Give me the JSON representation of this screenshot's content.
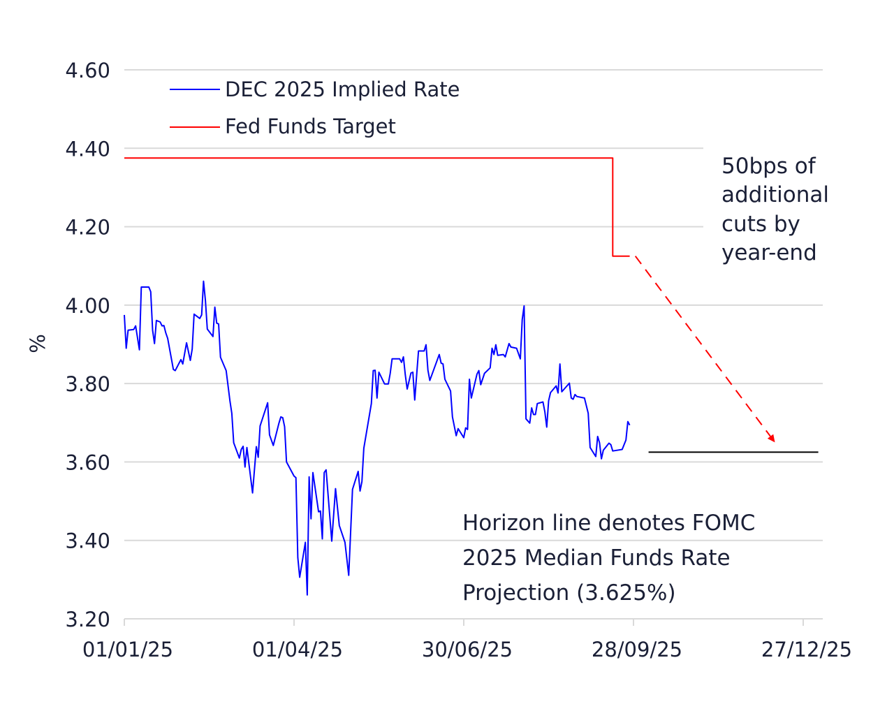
{
  "chart_data": {
    "type": "line",
    "title": "",
    "xlabel": "",
    "ylabel": "%",
    "ylim": [
      3.2,
      4.6
    ],
    "xlim": [
      "2025-01-01",
      "2026-01-06"
    ],
    "grid": true,
    "legend_position": "top-left",
    "y_ticks": [
      "4.60",
      "4.40",
      "4.20",
      "4.00",
      "3.80",
      "3.60",
      "3.40",
      "3.20"
    ],
    "x_ticks": [
      {
        "date": "2025-01-01",
        "label": "01/01/25"
      },
      {
        "date": "2025-04-01",
        "label": "01/04/25"
      },
      {
        "date": "2025-06-30",
        "label": "30/06/25"
      },
      {
        "date": "2025-09-28",
        "label": "28/09/25"
      },
      {
        "date": "2025-12-27",
        "label": "27/12/25"
      }
    ],
    "series": [
      {
        "name": "DEC 2025 Implied Rate",
        "color": "#0000ff",
        "points": [
          [
            "2025-01-01",
            3.975
          ],
          [
            "2025-01-02",
            3.89
          ],
          [
            "2025-01-03",
            3.936
          ],
          [
            "2025-01-06",
            3.938
          ],
          [
            "2025-01-07",
            3.947
          ],
          [
            "2025-01-09",
            3.886
          ],
          [
            "2025-01-10",
            4.046
          ],
          [
            "2025-01-14",
            4.046
          ],
          [
            "2025-01-15",
            4.034
          ],
          [
            "2025-01-16",
            3.936
          ],
          [
            "2025-01-17",
            3.902
          ],
          [
            "2025-01-18",
            3.961
          ],
          [
            "2025-01-20",
            3.957
          ],
          [
            "2025-01-21",
            3.947
          ],
          [
            "2025-01-22",
            3.948
          ],
          [
            "2025-01-23",
            3.929
          ],
          [
            "2025-01-24",
            3.915
          ],
          [
            "2025-01-27",
            3.836
          ],
          [
            "2025-01-28",
            3.833
          ],
          [
            "2025-01-31",
            3.861
          ],
          [
            "2025-02-01",
            3.85
          ],
          [
            "2025-02-03",
            3.904
          ],
          [
            "2025-02-05",
            3.859
          ],
          [
            "2025-02-06",
            3.888
          ],
          [
            "2025-02-07",
            3.977
          ],
          [
            "2025-02-10",
            3.966
          ],
          [
            "2025-02-11",
            3.975
          ],
          [
            "2025-02-12",
            4.061
          ],
          [
            "2025-02-13",
            4.012
          ],
          [
            "2025-02-14",
            3.939
          ],
          [
            "2025-02-17",
            3.92
          ],
          [
            "2025-02-18",
            3.995
          ],
          [
            "2025-02-19",
            3.954
          ],
          [
            "2025-02-20",
            3.952
          ],
          [
            "2025-02-21",
            3.867
          ],
          [
            "2025-02-24",
            3.833
          ],
          [
            "2025-02-26",
            3.756
          ],
          [
            "2025-02-27",
            3.724
          ],
          [
            "2025-02-28",
            3.649
          ],
          [
            "2025-03-03",
            3.61
          ],
          [
            "2025-03-04",
            3.632
          ],
          [
            "2025-03-05",
            3.64
          ],
          [
            "2025-03-06",
            3.587
          ],
          [
            "2025-03-07",
            3.637
          ],
          [
            "2025-03-10",
            3.521
          ],
          [
            "2025-03-12",
            3.639
          ],
          [
            "2025-03-13",
            3.612
          ],
          [
            "2025-03-14",
            3.692
          ],
          [
            "2025-03-18",
            3.751
          ],
          [
            "2025-03-19",
            3.669
          ],
          [
            "2025-03-21",
            3.642
          ],
          [
            "2025-03-24",
            3.699
          ],
          [
            "2025-03-25",
            3.715
          ],
          [
            "2025-03-26",
            3.713
          ],
          [
            "2025-03-27",
            3.69
          ],
          [
            "2025-03-28",
            3.6
          ],
          [
            "2025-04-01",
            3.564
          ],
          [
            "2025-04-02",
            3.56
          ],
          [
            "2025-04-03",
            3.356
          ],
          [
            "2025-04-04",
            3.306
          ],
          [
            "2025-04-07",
            3.395
          ],
          [
            "2025-04-08",
            3.261
          ],
          [
            "2025-04-09",
            3.562
          ],
          [
            "2025-04-10",
            3.455
          ],
          [
            "2025-04-11",
            3.573
          ],
          [
            "2025-04-14",
            3.473
          ],
          [
            "2025-04-15",
            3.475
          ],
          [
            "2025-04-16",
            3.404
          ],
          [
            "2025-04-17",
            3.573
          ],
          [
            "2025-04-18",
            3.58
          ],
          [
            "2025-04-21",
            3.398
          ],
          [
            "2025-04-23",
            3.532
          ],
          [
            "2025-04-25",
            3.438
          ],
          [
            "2025-04-28",
            3.395
          ],
          [
            "2025-04-30",
            3.311
          ],
          [
            "2025-05-02",
            3.53
          ],
          [
            "2025-05-05",
            3.576
          ],
          [
            "2025-05-06",
            3.526
          ],
          [
            "2025-05-07",
            3.55
          ],
          [
            "2025-05-08",
            3.635
          ],
          [
            "2025-05-12",
            3.749
          ],
          [
            "2025-05-13",
            3.833
          ],
          [
            "2025-05-14",
            3.834
          ],
          [
            "2025-05-15",
            3.763
          ],
          [
            "2025-05-16",
            3.829
          ],
          [
            "2025-05-19",
            3.799
          ],
          [
            "2025-05-21",
            3.799
          ],
          [
            "2025-05-22",
            3.826
          ],
          [
            "2025-05-23",
            3.863
          ],
          [
            "2025-05-27",
            3.863
          ],
          [
            "2025-05-28",
            3.854
          ],
          [
            "2025-05-29",
            3.868
          ],
          [
            "2025-05-30",
            3.822
          ],
          [
            "2025-05-31",
            3.786
          ],
          [
            "2025-06-02",
            3.827
          ],
          [
            "2025-06-03",
            3.829
          ],
          [
            "2025-06-04",
            3.758
          ],
          [
            "2025-06-06",
            3.883
          ],
          [
            "2025-06-09",
            3.883
          ],
          [
            "2025-06-10",
            3.899
          ],
          [
            "2025-06-11",
            3.834
          ],
          [
            "2025-06-12",
            3.808
          ],
          [
            "2025-06-17",
            3.874
          ],
          [
            "2025-06-18",
            3.852
          ],
          [
            "2025-06-19",
            3.85
          ],
          [
            "2025-06-20",
            3.811
          ],
          [
            "2025-06-23",
            3.781
          ],
          [
            "2025-06-24",
            3.715
          ],
          [
            "2025-06-26",
            3.667
          ],
          [
            "2025-06-27",
            3.685
          ],
          [
            "2025-06-30",
            3.662
          ],
          [
            "2025-07-01",
            3.687
          ],
          [
            "2025-07-02",
            3.683
          ],
          [
            "2025-07-03",
            3.811
          ],
          [
            "2025-07-04",
            3.763
          ],
          [
            "2025-07-07",
            3.824
          ],
          [
            "2025-07-08",
            3.833
          ],
          [
            "2025-07-09",
            3.797
          ],
          [
            "2025-07-11",
            3.826
          ],
          [
            "2025-07-14",
            3.84
          ],
          [
            "2025-07-15",
            3.89
          ],
          [
            "2025-07-16",
            3.874
          ],
          [
            "2025-07-17",
            3.899
          ],
          [
            "2025-07-18",
            3.872
          ],
          [
            "2025-07-21",
            3.874
          ],
          [
            "2025-07-22",
            3.868
          ],
          [
            "2025-07-24",
            3.902
          ],
          [
            "2025-07-25",
            3.893
          ],
          [
            "2025-07-28",
            3.89
          ],
          [
            "2025-07-30",
            3.863
          ],
          [
            "2025-07-31",
            3.963
          ],
          [
            "2025-08-01",
            3.998
          ],
          [
            "2025-08-02",
            3.71
          ],
          [
            "2025-08-04",
            3.699
          ],
          [
            "2025-08-05",
            3.738
          ],
          [
            "2025-08-06",
            3.721
          ],
          [
            "2025-08-07",
            3.721
          ],
          [
            "2025-08-08",
            3.749
          ],
          [
            "2025-08-11",
            3.753
          ],
          [
            "2025-08-12",
            3.728
          ],
          [
            "2025-08-13",
            3.689
          ],
          [
            "2025-08-14",
            3.756
          ],
          [
            "2025-08-15",
            3.777
          ],
          [
            "2025-08-18",
            3.794
          ],
          [
            "2025-08-19",
            3.776
          ],
          [
            "2025-08-20",
            3.85
          ],
          [
            "2025-08-21",
            3.779
          ],
          [
            "2025-08-25",
            3.801
          ],
          [
            "2025-08-26",
            3.763
          ],
          [
            "2025-08-27",
            3.76
          ],
          [
            "2025-08-28",
            3.772
          ],
          [
            "2025-08-29",
            3.767
          ],
          [
            "2025-09-02",
            3.763
          ],
          [
            "2025-09-04",
            3.724
          ],
          [
            "2025-09-05",
            3.637
          ],
          [
            "2025-09-08",
            3.614
          ],
          [
            "2025-09-09",
            3.665
          ],
          [
            "2025-09-10",
            3.649
          ],
          [
            "2025-09-11",
            3.608
          ],
          [
            "2025-09-12",
            3.63
          ],
          [
            "2025-09-15",
            3.648
          ],
          [
            "2025-09-16",
            3.644
          ],
          [
            "2025-09-17",
            3.628
          ],
          [
            "2025-09-22",
            3.632
          ],
          [
            "2025-09-24",
            3.656
          ],
          [
            "2025-09-25",
            3.703
          ],
          [
            "2025-09-26",
            3.694
          ]
        ]
      },
      {
        "name": "Fed Funds Target",
        "color": "#ff0000",
        "step": true,
        "points": [
          [
            "2025-01-01",
            4.375
          ],
          [
            "2025-09-17",
            4.375
          ],
          [
            "2025-09-17",
            4.125
          ],
          [
            "2025-09-26",
            4.125
          ]
        ]
      }
    ],
    "projection_arrow": {
      "color": "#ff0000",
      "style": "dashed",
      "from": [
        "2025-09-29",
        4.125
      ],
      "to": [
        "2025-12-12",
        3.65
      ],
      "label": "50bps of additional cuts by year-end",
      "label_lines": [
        "50bps of",
        "additional",
        "cuts by",
        "year-end"
      ]
    },
    "horizon_line": {
      "color": "#000000",
      "value": 3.625,
      "from": "2025-10-06",
      "to": "2026-01-04",
      "label_lines": [
        "Horizon line denotes FOMC",
        "2025 Median Funds Rate",
        "Projection (3.625%)"
      ]
    }
  }
}
